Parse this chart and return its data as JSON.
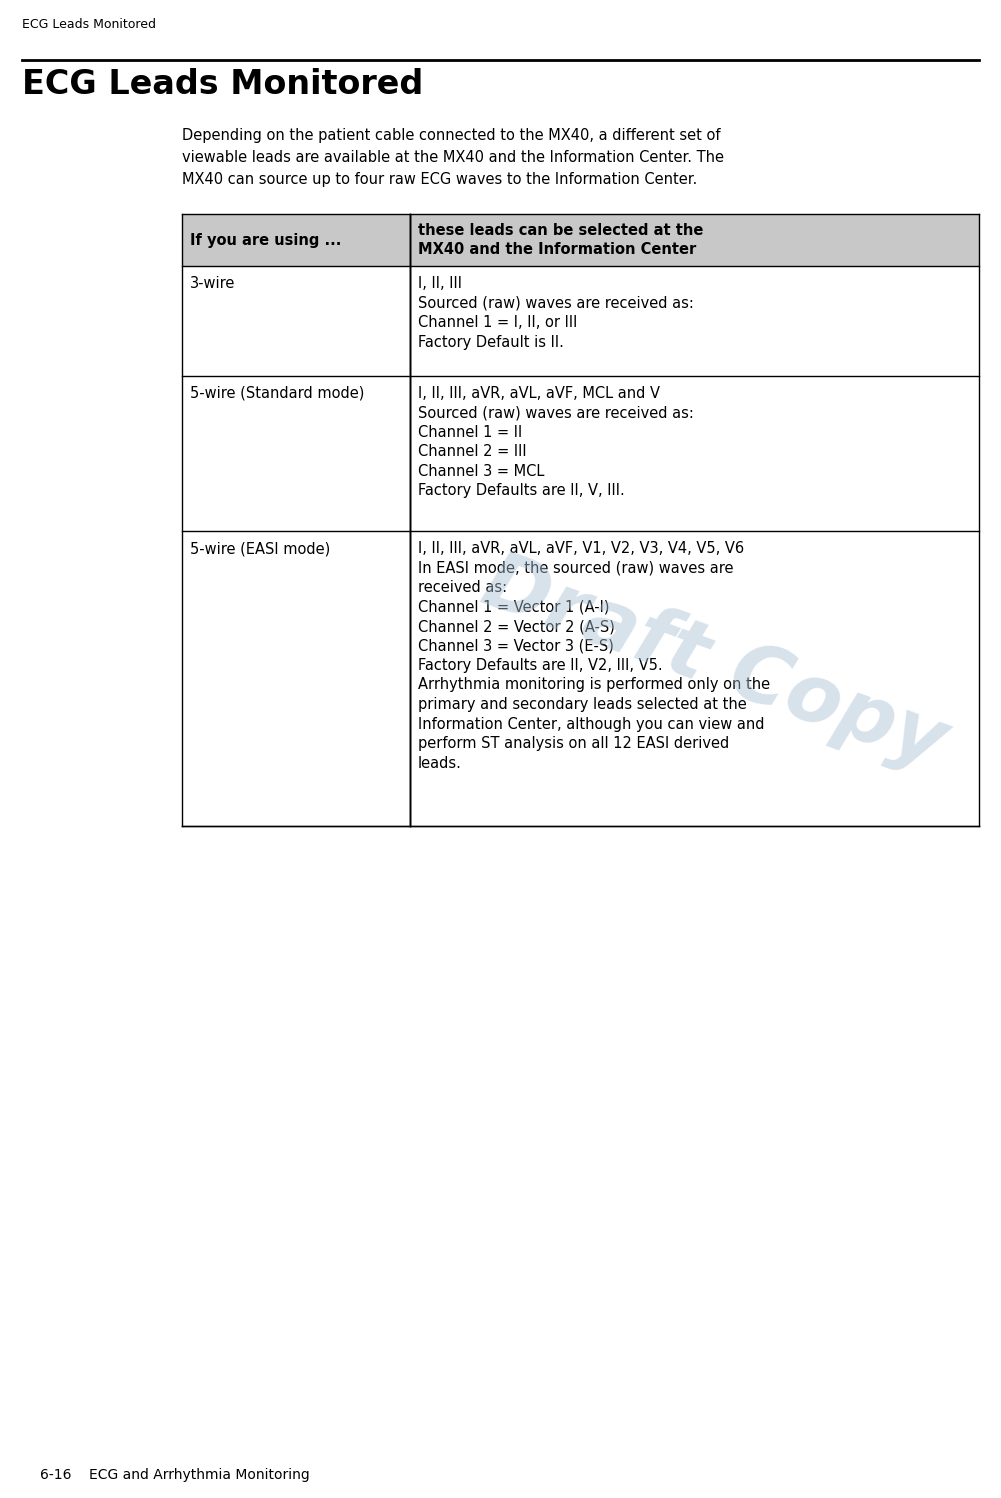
{
  "page_header": "ECG Leads Monitored",
  "page_footer": "6-16    ECG and Arrhythmia Monitoring",
  "section_title": "ECG Leads Monitored",
  "intro_text": "Depending on the patient cable connected to the MX40, a different set of viewable leads are available at the MX40 and the Information Center. The MX40 can source up to four raw ECG waves to the Information Center.",
  "col1_header": "If you are using ...",
  "col2_header": "these leads can be selected at the\nMX40 and the Information Center",
  "header_bg": "#c8c8c8",
  "table_border": "#000000",
  "rows": [
    {
      "col1": "3-wire",
      "col2_lines": [
        "I, II, III",
        "Sourced (raw) waves are received as:",
        "Channel 1 = I, II, or III",
        "Factory Default is II."
      ]
    },
    {
      "col1": "5-wire (Standard mode)",
      "col2_lines": [
        "I, II, III, aVR, aVL, aVF, MCL and V",
        "Sourced (raw) waves are received as:",
        "Channel 1 = II",
        "Channel 2 = III",
        "Channel 3 = MCL",
        "Factory Defaults are II, V, III."
      ]
    },
    {
      "col1": "5-wire (EASI mode)",
      "col2_lines": [
        "I, II, III, aVR, aVL, aVF, V1, V2, V3, V4, V5, V6",
        "In EASI mode, the sourced (raw) waves are",
        "received as:",
        "Channel 1 = Vector 1 (A-I)",
        "Channel 2 = Vector 2 (A-S)",
        "Channel 3 = Vector 3 (E-S)",
        "Factory Defaults are II, V2, III, V5.",
        "Arrhythmia monitoring is performed only on the",
        "primary and secondary leads selected at the",
        "Information Center, although you can view and",
        "perform ST analysis on all 12 EASI derived",
        "leads."
      ]
    }
  ],
  "draft_watermark": "Draft Copy",
  "draft_color": "#a8bfd4",
  "draft_alpha": 0.45,
  "bg_color": "#ffffff",
  "text_color": "#000000"
}
